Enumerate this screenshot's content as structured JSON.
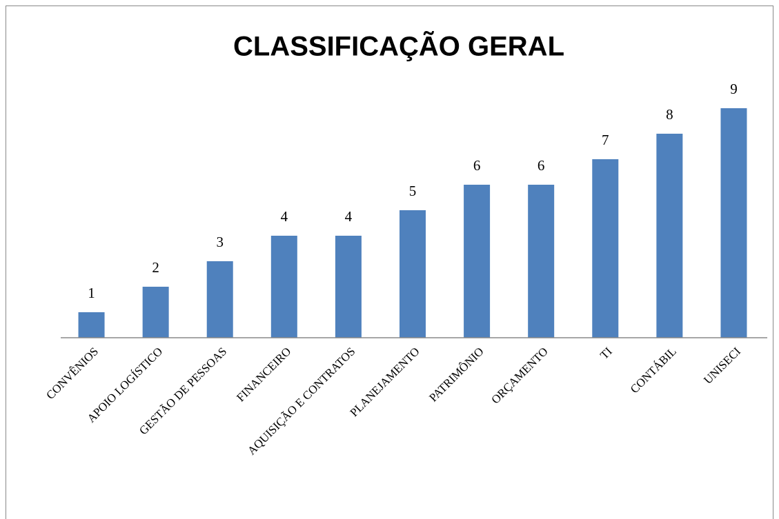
{
  "chart_data": {
    "type": "bar",
    "title": "CLASSIFICAÇÃO GERAL",
    "categories": [
      "CONVÊNIOS",
      "APOIO LOGÍSTICO",
      "GESTÃO DE PESSOAS",
      "FINANCEIRO",
      "AQUISIÇÃO E CONTRATOS",
      "PLANEJAMENTO",
      "PATRIMÔNIO",
      "ORÇAMENTO",
      "TI",
      "CONTÁBIL",
      "UNISECI"
    ],
    "values": [
      1,
      2,
      3,
      4,
      4,
      5,
      6,
      6,
      7,
      8,
      9
    ],
    "color": "#4f81bd"
  }
}
